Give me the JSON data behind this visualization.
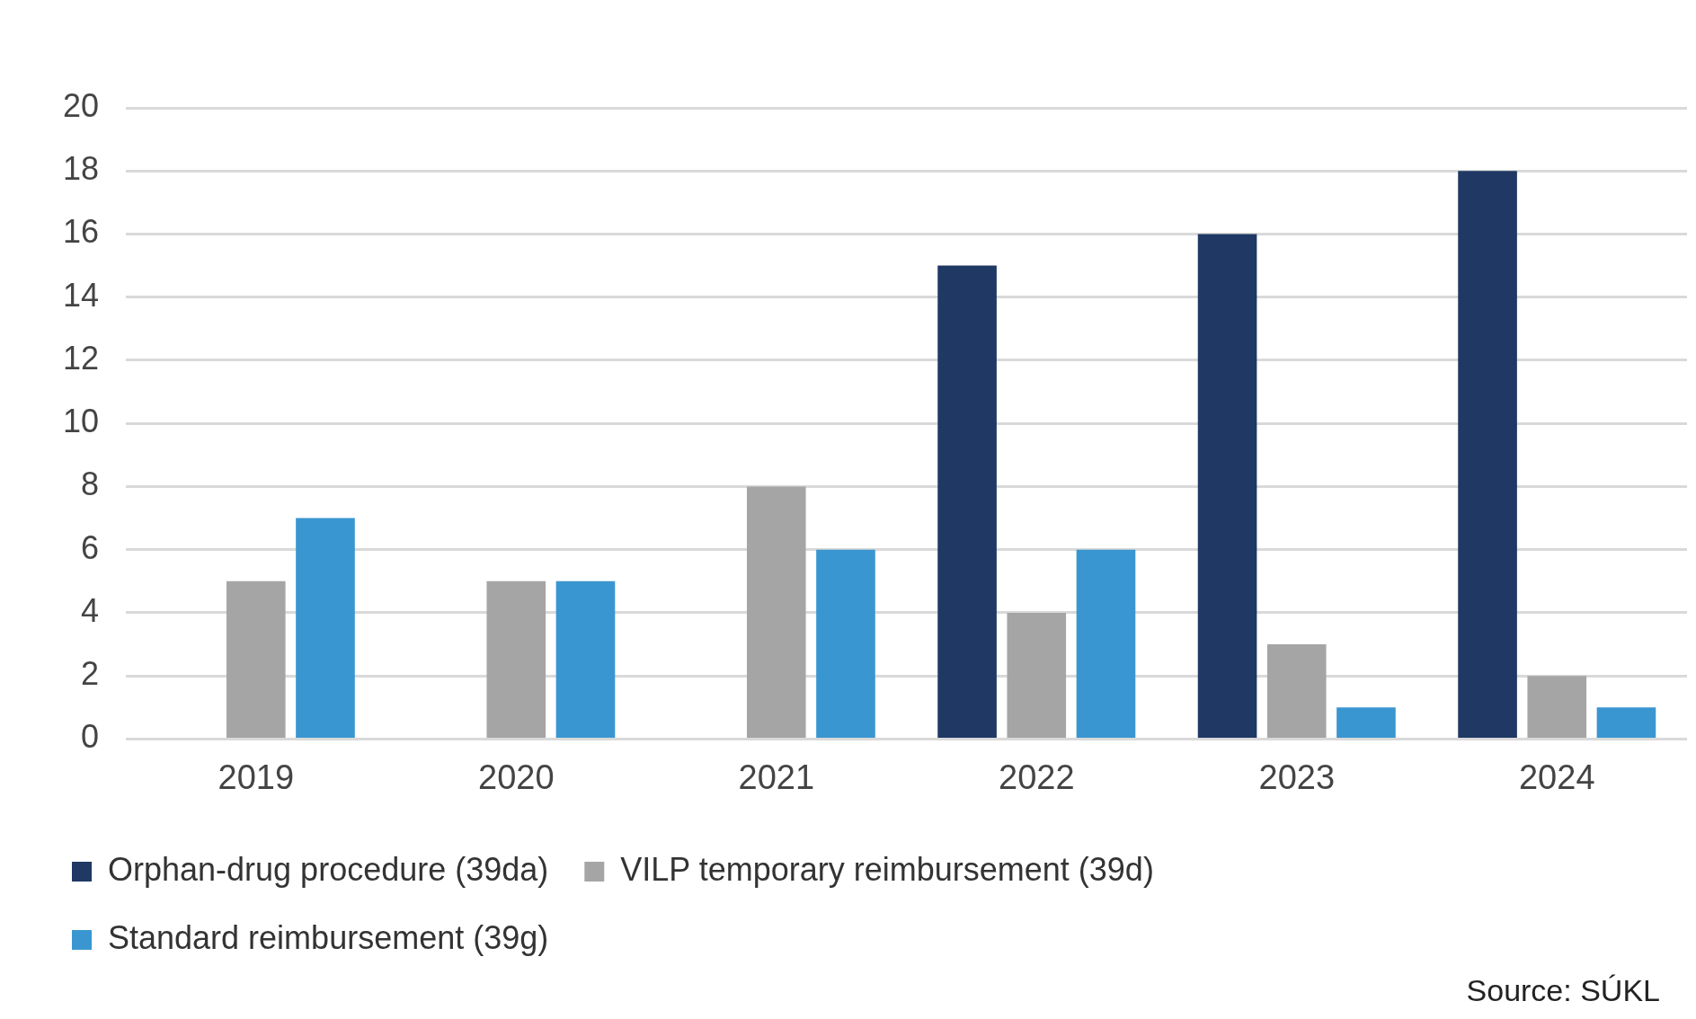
{
  "chart_data": {
    "type": "bar",
    "categories": [
      "2019",
      "2020",
      "2021",
      "2022",
      "2023",
      "2024"
    ],
    "series": [
      {
        "name": "Orphan-drug procedure (39da)",
        "color": "#1f3864",
        "values": [
          null,
          null,
          null,
          15,
          16,
          18
        ]
      },
      {
        "name": "VILP temporary reimbursement (39d)",
        "color": "#a5a5a5",
        "values": [
          5,
          5,
          8,
          4,
          3,
          2
        ]
      },
      {
        "name": "Standard reimbursement (39g)",
        "color": "#3a96d0",
        "values": [
          7,
          5,
          6,
          6,
          1,
          1
        ]
      }
    ],
    "ylim": [
      0,
      20
    ],
    "yticks": [
      0,
      2,
      4,
      6,
      8,
      10,
      12,
      14,
      16,
      18,
      20
    ],
    "grid": "y",
    "legend": "bottom",
    "annotations": [
      "Source: SÚKL"
    ]
  }
}
